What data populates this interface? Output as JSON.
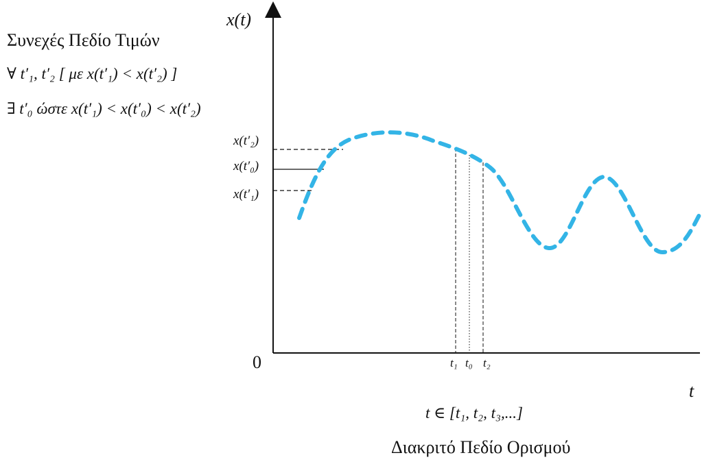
{
  "left_panel": {
    "heading": "Συνεχές  Πεδίο Τιμών",
    "forall_line": "∀  t′₁, t′₂  [ με  x(t′₁) < x(t′₂) ]",
    "exists_line": "∃  t′₀  ώστε x(t′₁) < x(t′₀) < x(t′₂)"
  },
  "axes": {
    "y_label": "x(t)",
    "x_label": "t",
    "origin_label": "0"
  },
  "y_markers": [
    "x(t′₂)",
    "x(t′₀)",
    "x(t′₁)"
  ],
  "x_markers": [
    "t₁",
    "t₀",
    "t₂"
  ],
  "domain_set": "t ∈  [t₁, t₂, t₃,...]",
  "caption": "Διακριτό Πεδίο Ορισμού",
  "colors": {
    "curve": "#33b4e6",
    "axis": "#111111"
  }
}
